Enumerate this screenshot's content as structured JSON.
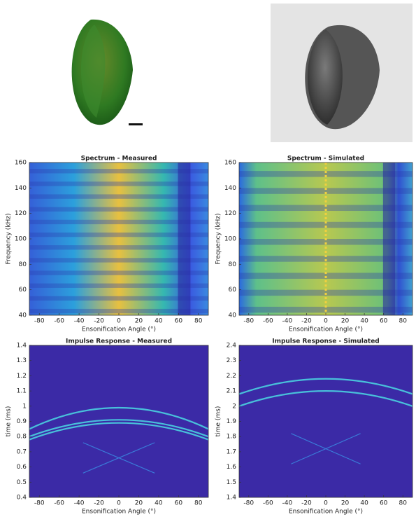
{
  "chart_data": [
    {
      "type": "heatmap",
      "title": "Spectrum - Measured",
      "xlabel": "Ensonification Angle (°)",
      "ylabel": "Frequency (kHz)",
      "xlim": [
        -90,
        90
      ],
      "xticks": [
        -80,
        -60,
        -40,
        -20,
        0,
        20,
        40,
        60,
        80
      ],
      "ylim": [
        40,
        160
      ],
      "yticks": [
        40,
        60,
        80,
        100,
        120,
        140,
        160
      ]
    },
    {
      "type": "heatmap",
      "title": "Spectrum - Simulated",
      "xlabel": "Ensonification Angle (°)",
      "ylabel": "Frequency (kHz)",
      "xlim": [
        -90,
        90
      ],
      "xticks": [
        -80,
        -60,
        -40,
        -20,
        0,
        20,
        40,
        60,
        80
      ],
      "ylim": [
        40,
        160
      ],
      "yticks": [
        40,
        60,
        80,
        100,
        120,
        140,
        160
      ]
    },
    {
      "type": "heatmap",
      "title": "Impulse Response - Measured",
      "xlabel": "Ensonification Angle (°)",
      "ylabel": "time (ms)",
      "xlim": [
        -90,
        90
      ],
      "xticks": [
        -80,
        -60,
        -40,
        -20,
        0,
        20,
        40,
        60,
        80
      ],
      "ylim": [
        0.4,
        1.4
      ],
      "yticks": [
        0.4,
        0.5,
        0.6,
        0.7,
        0.8,
        0.9,
        1,
        1.1,
        1.2,
        1.3,
        1.4
      ]
    },
    {
      "type": "heatmap",
      "title": "Impulse Response - Simulated",
      "xlabel": "Ensonification Angle (°)",
      "ylabel": "time (ms)",
      "xlim": [
        -90,
        90
      ],
      "xticks": [
        -80,
        -60,
        -40,
        -20,
        0,
        20,
        40,
        60,
        80
      ],
      "ylim": [
        1.4,
        2.4
      ],
      "yticks": [
        1.4,
        1.5,
        1.6,
        1.7,
        1.8,
        1.9,
        2,
        2.1,
        2.2,
        2.3,
        2.4
      ]
    }
  ]
}
